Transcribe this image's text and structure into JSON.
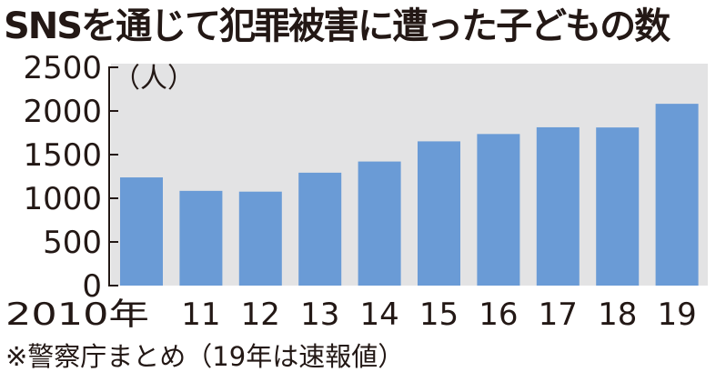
{
  "chart_data": {
    "type": "bar",
    "title": "SNSを通じて犯罪被害に遭った子どもの数",
    "ylabel": "（人）",
    "categories": [
      "2010年",
      "11",
      "12",
      "13",
      "14",
      "15",
      "16",
      "17",
      "18",
      "19"
    ],
    "values": [
      1239,
      1085,
      1076,
      1293,
      1421,
      1652,
      1736,
      1813,
      1811,
      2082
    ],
    "ylim": [
      0,
      2500
    ],
    "yticks": [
      "0",
      "500",
      "1000",
      "1500",
      "2000",
      "2500"
    ],
    "grid": false,
    "legend": "none",
    "source_note": "※警察庁まとめ（19年は速報値）",
    "colors": {
      "bar": "#6a9bd6",
      "background": "#e3e3e4",
      "text": "#231815"
    }
  }
}
